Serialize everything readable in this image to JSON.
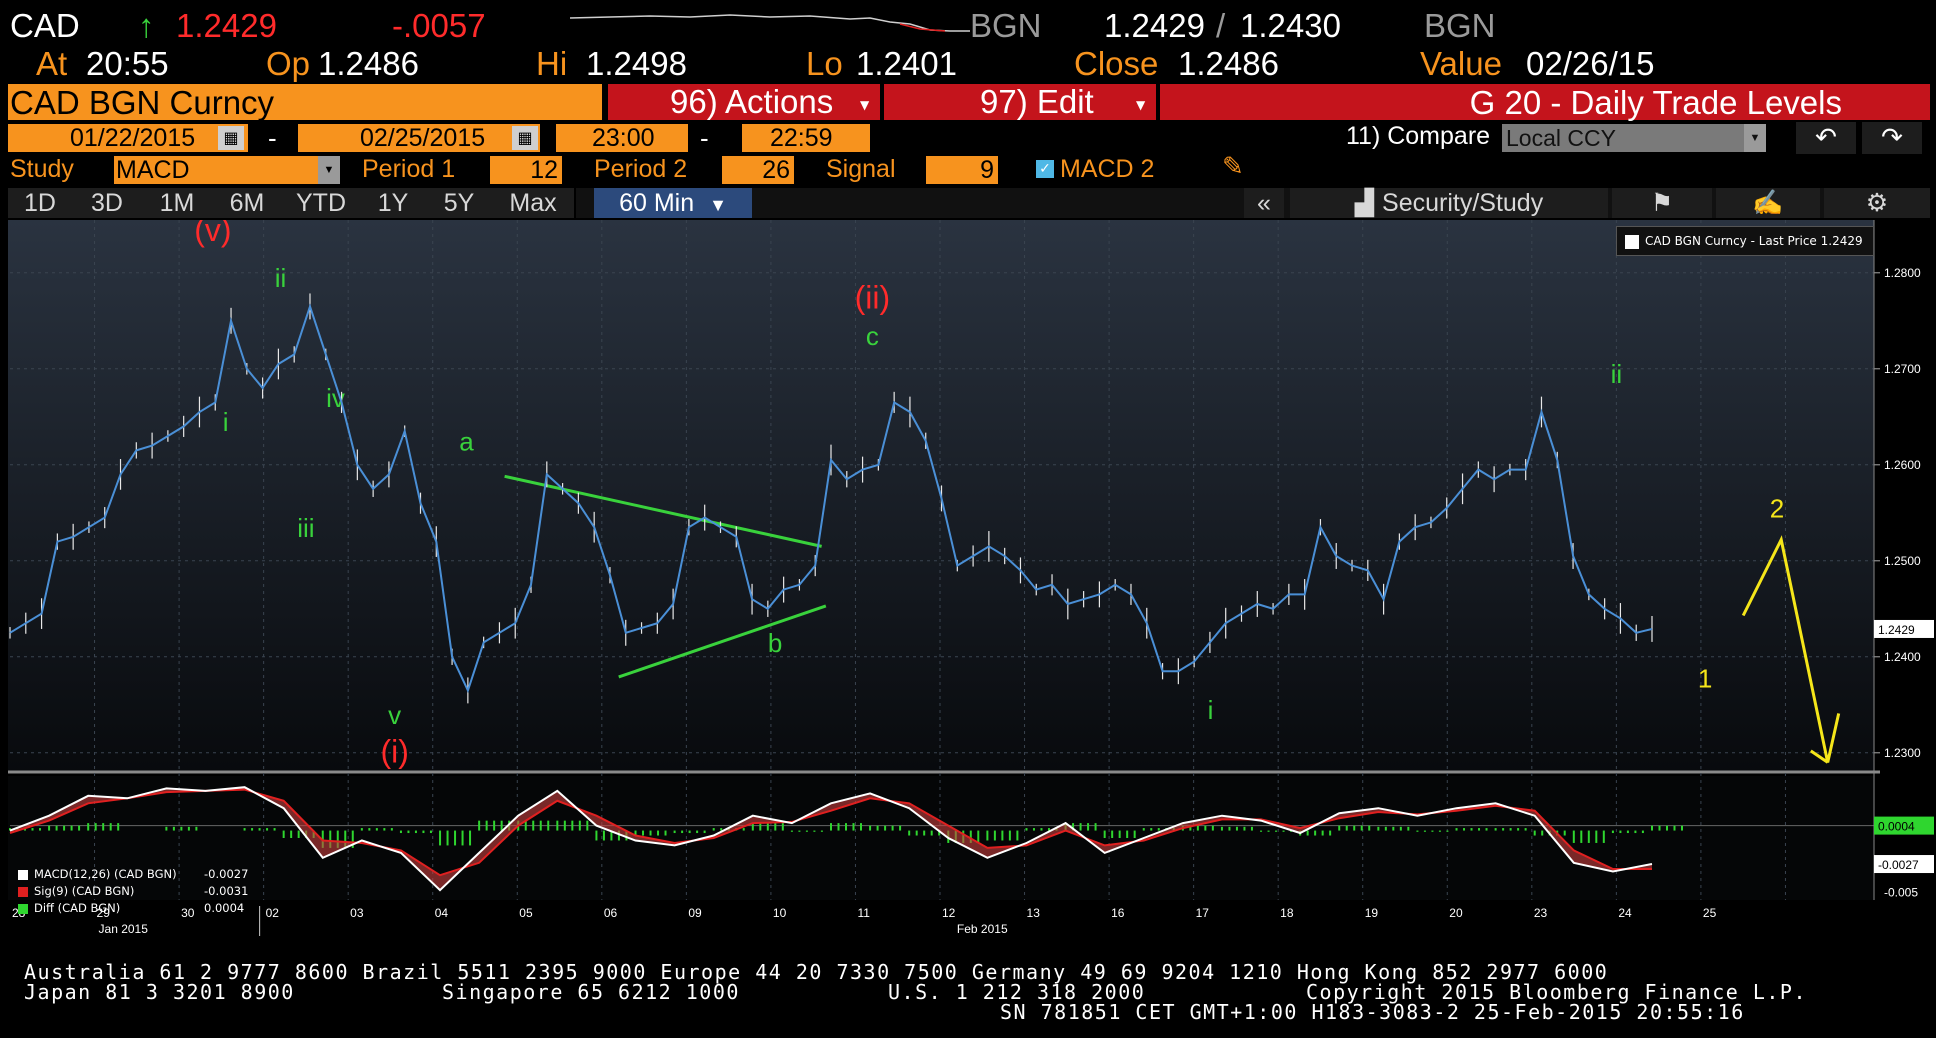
{
  "header": {
    "ticker": "CAD",
    "arrow": "↑",
    "last": "1.2429",
    "change": "-.0057",
    "source_left": "BGN",
    "bid": "1.2429",
    "slash": "/",
    "ask": "1.2430",
    "source_right": "BGN",
    "at_label": "At",
    "at_value": "20:55",
    "op_label": "Op",
    "op_value": "1.2486",
    "hi_label": "Hi",
    "hi_value": "1.2498",
    "lo_label": "Lo",
    "lo_value": "1.2401",
    "close_label": "Close",
    "close_value": "1.2486",
    "value_label": "Value",
    "value_date": "02/26/15"
  },
  "toolbar": {
    "security": "CAD BGN Curncy",
    "actions": "96) Actions",
    "edit": "97) Edit",
    "title": "G 20 - Daily Trade Levels",
    "start_date": "01/22/2015",
    "dash": "-",
    "end_date": "02/25/2015",
    "start_time": "23:00",
    "end_time": "22:59",
    "compare_label": "11) Compare",
    "compare_value": "Local CCY",
    "study_label": "Study",
    "study_value": "MACD",
    "period1_label": "Period 1",
    "period1_value": "12",
    "period2_label": "Period 2",
    "period2_value": "26",
    "signal_label": "Signal",
    "signal_value": "9",
    "macd2_label": "MACD 2"
  },
  "tabs": [
    "1D",
    "3D",
    "1M",
    "6M",
    "YTD",
    "1Y",
    "5Y",
    "Max"
  ],
  "interval": "60 Min",
  "collapse_label": "«",
  "security_study_label": "Security/Study",
  "icons": [
    "calendar-icon",
    "undo-icon",
    "redo-icon",
    "pencil-icon",
    "chart-icon",
    "flag-icon",
    "edit-icon",
    "gear-icon"
  ],
  "colors": {
    "orange": "#f7931e",
    "red_bar": "#c4141c",
    "price_line": "#4a8fd6",
    "wave_green": "#39d23c",
    "wave_red": "#ff2b2b",
    "forecast_yellow": "#f5e61a",
    "macd_white": "#ffffff",
    "signal_red": "#e02020",
    "diff_green": "#2fd62f"
  },
  "chart_data": [
    {
      "type": "line",
      "legend": "CAD BGN Curncy - Last Price 1.2429",
      "y_ticks": [
        "1.2800",
        "1.2700",
        "1.2600",
        "1.2500",
        "1.2400",
        "1.2300"
      ],
      "ylim": [
        1.228,
        1.2855
      ],
      "x_ticks": [
        "28",
        "29",
        "30",
        "02",
        "03",
        "04",
        "05",
        "06",
        "09",
        "10",
        "11",
        "12",
        "13",
        "16",
        "17",
        "18",
        "19",
        "20",
        "23",
        "24",
        "25"
      ],
      "month_labels": [
        "Jan 2015",
        "Feb 2015"
      ],
      "last_price_tag": "1.2429",
      "series": [
        {
          "values": [
            1.2425,
            1.2435,
            1.2445,
            1.252,
            1.2525,
            1.2535,
            1.2545,
            1.259,
            1.2615,
            1.262,
            1.263,
            1.264,
            1.2655,
            1.2665,
            1.275,
            1.27,
            1.268,
            1.2705,
            1.2715,
            1.2765,
            1.2715,
            1.2665,
            1.26,
            1.2575,
            1.259,
            1.2635,
            1.256,
            1.252,
            1.24,
            1.2365,
            1.2415,
            1.2425,
            1.2435,
            1.2475,
            1.259,
            1.2575,
            1.256,
            1.2535,
            1.2485,
            1.2425,
            1.243,
            1.2435,
            1.2455,
            1.2535,
            1.2545,
            1.2535,
            1.2525,
            1.246,
            1.245,
            1.247,
            1.2475,
            1.2495,
            1.2605,
            1.2585,
            1.2595,
            1.26,
            1.2665,
            1.2655,
            1.2625,
            1.2565,
            1.2495,
            1.2505,
            1.2515,
            1.2505,
            1.249,
            1.247,
            1.2475,
            1.2455,
            1.246,
            1.2465,
            1.2475,
            1.2465,
            1.2435,
            1.2385,
            1.2385,
            1.2395,
            1.2415,
            1.2435,
            1.2445,
            1.2455,
            1.245,
            1.2465,
            1.2465,
            1.2535,
            1.2505,
            1.2495,
            1.249,
            1.246,
            1.252,
            1.2535,
            1.254,
            1.2555,
            1.2575,
            1.2595,
            1.2585,
            1.2595,
            1.2595,
            1.2655,
            1.2605,
            1.2505,
            1.2465,
            1.245,
            1.244,
            1.2425,
            1.2429
          ]
        },
        {
          "name": "CAD BGN Curncy - Last Price",
          "values": [
            1.2429
          ]
        }
      ],
      "wave_labels": [
        {
          "text": "(v)",
          "color": "red",
          "x_day": 2.4,
          "y": 1.2833
        },
        {
          "text": "ii",
          "color": "green",
          "x_day": 3.2,
          "y": 1.2785
        },
        {
          "text": "i",
          "color": "green",
          "x_day": 2.55,
          "y": 1.2635
        },
        {
          "text": "iv",
          "color": "green",
          "x_day": 3.85,
          "y": 1.266
        },
        {
          "text": "iii",
          "color": "green",
          "x_day": 3.5,
          "y": 1.2525
        },
        {
          "text": "v",
          "color": "green",
          "x_day": 4.55,
          "y": 1.233
        },
        {
          "text": "(i)",
          "color": "red",
          "x_day": 4.55,
          "y": 1.229
        },
        {
          "text": "a",
          "color": "green",
          "x_day": 5.4,
          "y": 1.2615
        },
        {
          "text": "b",
          "color": "green",
          "x_day": 9.05,
          "y": 1.2405
        },
        {
          "text": "(ii)",
          "color": "red",
          "x_day": 10.2,
          "y": 1.2763
        },
        {
          "text": "c",
          "color": "green",
          "x_day": 10.2,
          "y": 1.2725
        },
        {
          "text": "i",
          "color": "green",
          "x_day": 14.2,
          "y": 1.2335
        },
        {
          "text": "ii",
          "color": "green",
          "x_day": 19.0,
          "y": 1.2685
        },
        {
          "text": "2",
          "color": "yellow",
          "x_day": 20.9,
          "y": 1.2545
        },
        {
          "text": "1",
          "color": "yellow",
          "x_day": 20.05,
          "y": 1.2368
        }
      ]
    },
    {
      "type": "line",
      "legend_entries": [
        {
          "name": "MACD(12,26) (CAD BGN)",
          "value": "-0.0027"
        },
        {
          "name": "Sig(9) (CAD BGN)",
          "value": "-0.0031"
        },
        {
          "name": "Diff (CAD BGN)",
          "value": "0.0004"
        }
      ],
      "y_ticks": [
        "0.0004",
        "-0.0027",
        "-0.005"
      ],
      "ylim": [
        -0.0056,
        0.0044
      ],
      "series": [
        {
          "name": "MACD(12,26) (CAD BGN)",
          "values": [
            0.0,
            0.0012,
            0.0028,
            0.0026,
            0.0034,
            0.0032,
            0.0035,
            0.0018,
            -0.0022,
            -0.0008,
            -0.0018,
            -0.0048,
            -0.0018,
            0.0012,
            0.0032,
            0.0004,
            -0.0008,
            -0.0012,
            -0.0004,
            0.0012,
            0.0006,
            0.0022,
            0.003,
            0.0018,
            -0.0006,
            -0.0022,
            -0.001,
            0.0006,
            -0.0018,
            -0.0006,
            0.0006,
            0.0012,
            0.0008,
            -0.0002,
            0.0014,
            0.0018,
            0.0012,
            0.0018,
            0.0022,
            0.0012,
            -0.0026,
            -0.0033,
            -0.0027
          ]
        },
        {
          "name": "Sig(9) (CAD BGN)",
          "values": [
            -0.0002,
            0.0008,
            0.0022,
            0.0026,
            0.0031,
            0.0032,
            0.0033,
            0.0024,
            -0.0008,
            -0.001,
            -0.0016,
            -0.0036,
            -0.0026,
            0.0004,
            0.0024,
            0.0012,
            -0.0004,
            -0.001,
            -0.0006,
            0.0006,
            0.0007,
            0.0016,
            0.0026,
            0.0022,
            0.0004,
            -0.0014,
            -0.0012,
            0.0,
            -0.0012,
            -0.0008,
            0.0002,
            0.0009,
            0.0009,
            0.0002,
            0.001,
            0.0015,
            0.0013,
            0.0016,
            0.002,
            0.0016,
            -0.0016,
            -0.0031,
            -0.0031
          ]
        },
        {
          "name": "Diff (CAD BGN)",
          "values": [
            0.0002,
            0.0004,
            0.0006,
            0.0,
            0.0003,
            0.0,
            0.0002,
            -0.0006,
            -0.0014,
            0.0002,
            -0.0002,
            -0.0012,
            0.0008,
            0.0008,
            0.0008,
            -0.0008,
            -0.0004,
            -0.0002,
            0.0002,
            0.0006,
            -0.0001,
            0.0006,
            0.0004,
            -0.0004,
            -0.001,
            -0.0008,
            0.0002,
            0.0006,
            -0.0006,
            0.0002,
            0.0004,
            0.0003,
            -0.0001,
            -0.0004,
            0.0004,
            0.0003,
            -0.0001,
            0.0002,
            0.0002,
            -0.0004,
            -0.001,
            -0.0002,
            0.0004
          ]
        }
      ]
    }
  ],
  "footer": {
    "line1": "Australia 61 2 9777 8600 Brazil 5511 2395 9000 Europe 44 20 7330 7500 Germany 49 69 9204 1210 Hong Kong 852 2977 6000",
    "line2a": "Japan 81 3 3201 8900",
    "line2b": "Singapore 65 6212 1000",
    "line2c": "U.S. 1 212 318 2000",
    "line2d": "Copyright 2015 Bloomberg Finance L.P.",
    "line3": "SN 781851 CET   GMT+1:00 H183-3083-2 25-Feb-2015 20:55:16"
  }
}
